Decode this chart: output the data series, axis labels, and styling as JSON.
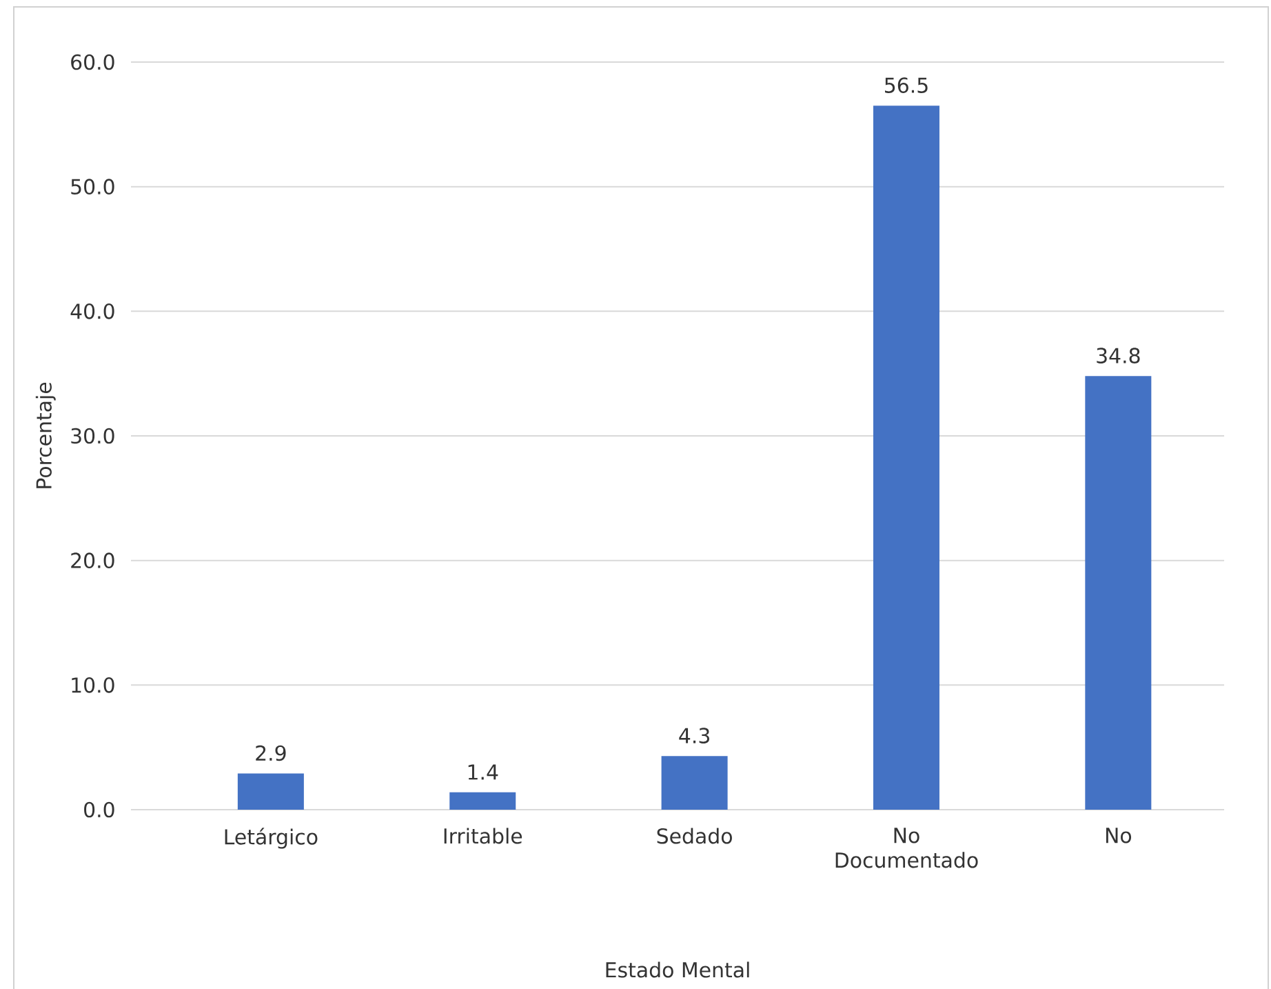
{
  "chart_data": {
    "type": "bar",
    "xlabel": "Estado Mental",
    "ylabel": "Porcentaje",
    "categories": [
      "Letárgico",
      "Irritable",
      "Sedado",
      "No Documentado",
      "No"
    ],
    "values": [
      2.9,
      1.4,
      4.3,
      56.5,
      34.8
    ],
    "value_labels": [
      "2.9",
      "1.4",
      "4.3",
      "56.5",
      "34.8"
    ],
    "color": "#4472c4",
    "ylim": [
      0,
      60
    ],
    "yticks": [
      {
        "value": 0,
        "label": "0.0"
      },
      {
        "value": 10,
        "label": "10.0"
      },
      {
        "value": 20,
        "label": "20.0"
      },
      {
        "value": 30,
        "label": "30.0"
      },
      {
        "value": 40,
        "label": "40.0"
      },
      {
        "value": 50,
        "label": "50.0"
      },
      {
        "value": 60,
        "label": "60.0"
      }
    ],
    "grid": "y"
  }
}
